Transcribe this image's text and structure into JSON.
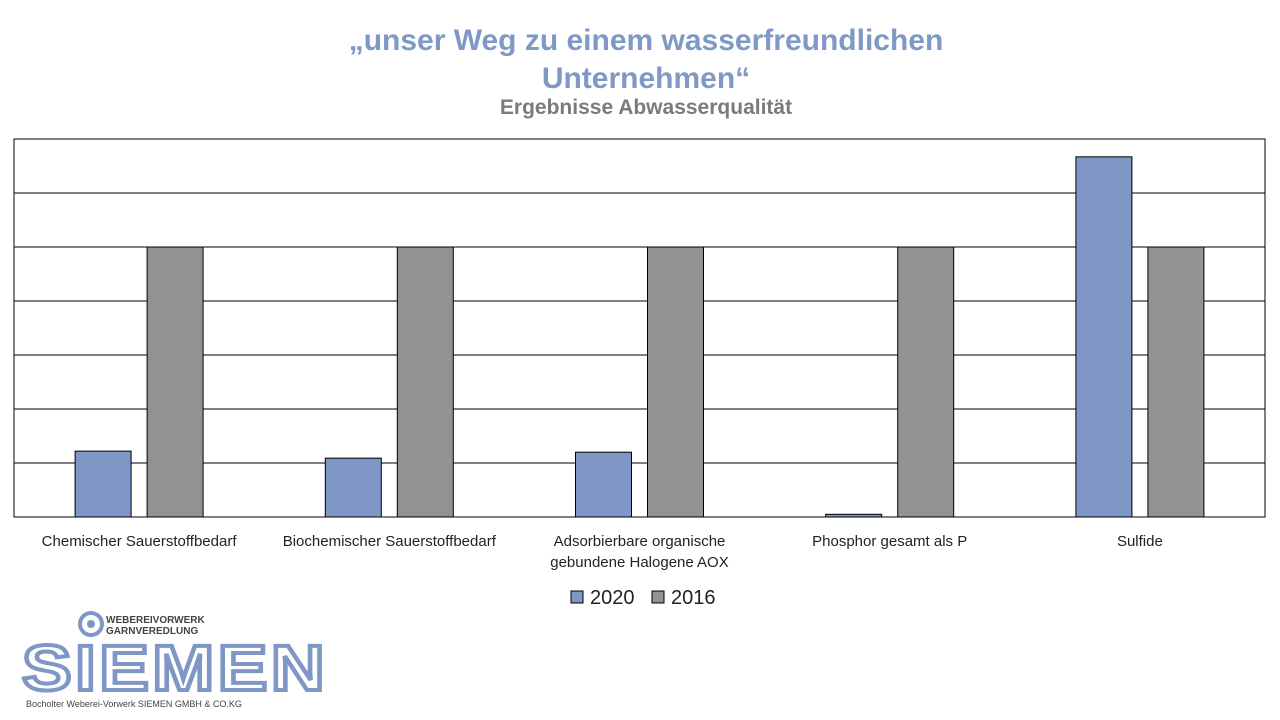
{
  "header": {
    "title_line1": "„unser Weg zu einem wasserfreundlichen",
    "title_line2": "Unternehmen“",
    "subtitle": "Ergebnisse Abwasserqualität"
  },
  "chart_data": {
    "type": "bar",
    "categories": [
      [
        "Chemischer Sauerstoffbedarf"
      ],
      [
        "Biochemischer Sauerstoffbedarf"
      ],
      [
        "Adsorbierbare organische",
        "gebundene Halogene AOX"
      ],
      [
        "Phosphor gesamt als P"
      ],
      [
        "Sulfide"
      ]
    ],
    "series": [
      {
        "name": "2020",
        "color": "#7f97c6",
        "values": [
          1.22,
          1.09,
          1.2,
          0.05,
          6.67
        ]
      },
      {
        "name": "2016",
        "color": "#929292",
        "values": [
          5,
          5,
          5,
          5,
          5
        ]
      }
    ],
    "ylim": [
      0,
      7
    ],
    "grid": true,
    "legend": "bottom"
  },
  "logo": {
    "line1": "WEBEREIVORWERK",
    "line2": "GARNVEREDLUNG",
    "wordmark": "SIEMEN",
    "footer": "Bocholter Weberei-Vorwerk SIEMEN GMBH & CO.KG",
    "color": "#7f97c6"
  }
}
